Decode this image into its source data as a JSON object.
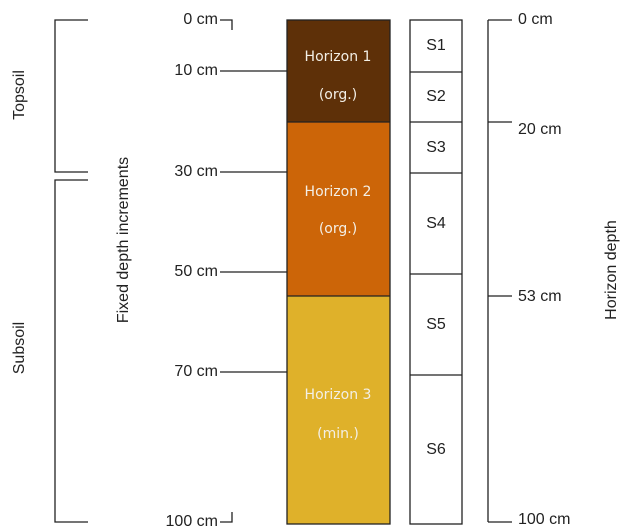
{
  "brackets": [
    {
      "label": "Topsoil"
    },
    {
      "label": "Subsoil"
    }
  ],
  "fixed_axis": {
    "title": "Fixed depth increments",
    "labels": [
      "0 cm",
      "10 cm",
      "30 cm",
      "50 cm",
      "70 cm",
      "100 cm"
    ]
  },
  "horizons": [
    {
      "name": "Horizon 1",
      "kind": "(org.)"
    },
    {
      "name": "Horizon 2",
      "kind": "(org.)"
    },
    {
      "name": "Horizon 3",
      "kind": "(min.)"
    }
  ],
  "samples": [
    "S1",
    "S2",
    "S3",
    "S4",
    "S5",
    "S6"
  ],
  "horizon_axis": {
    "title": "Horizon depth",
    "labels": [
      "0 cm",
      "20 cm",
      "53 cm",
      "100 cm"
    ]
  }
}
